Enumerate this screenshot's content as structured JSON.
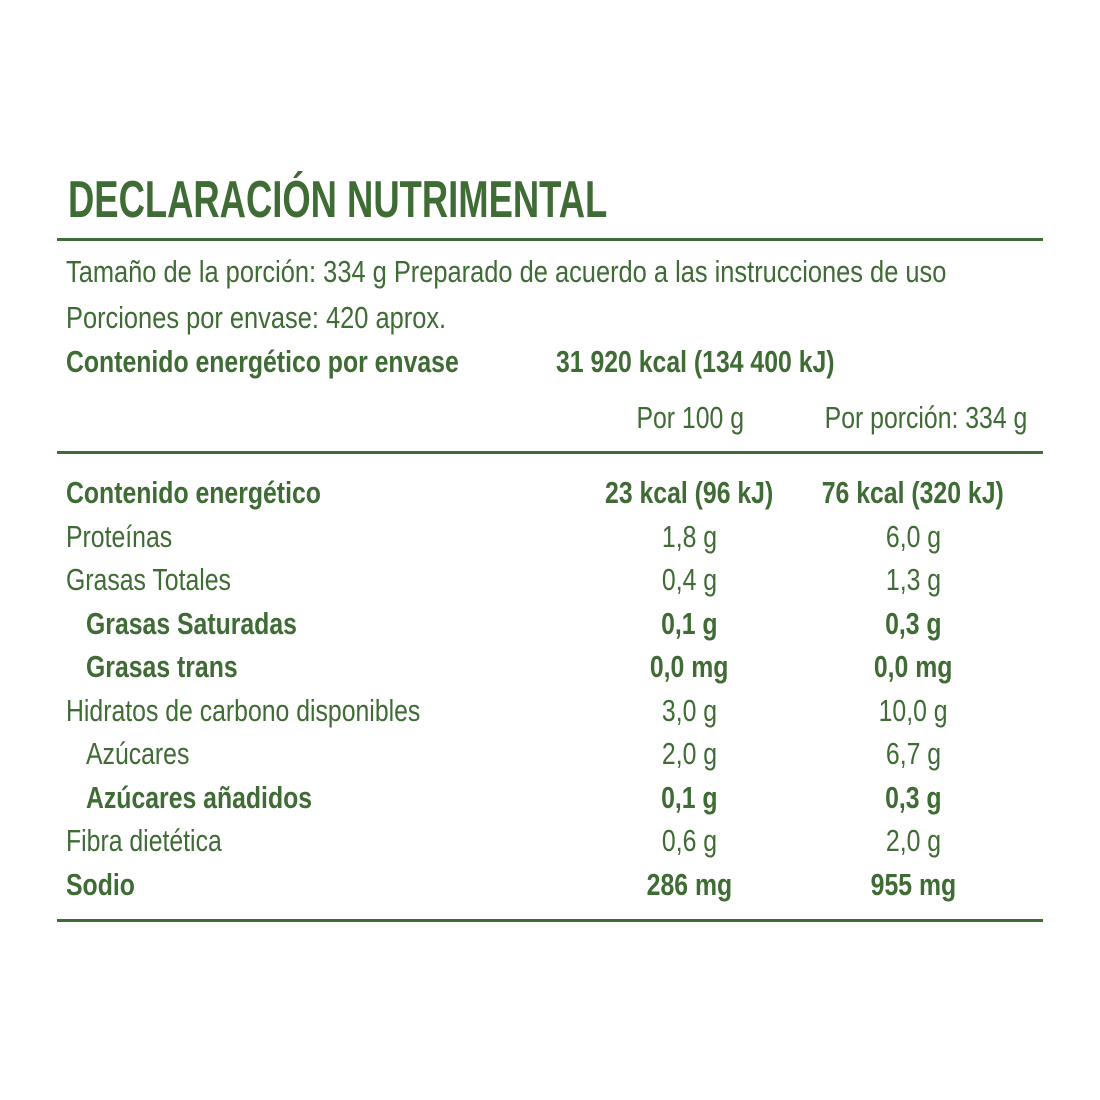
{
  "header": {
    "title": "DECLARACIÓN NUTRIMENTAL"
  },
  "serving": {
    "size_line": "Tamaño de la porción: 334 g Preparado de acuerdo a las instrucciones de uso",
    "servings_line": "Porciones por envase: 420 aprox.",
    "energy_label": "Contenido energético por envase",
    "energy_value": "31 920 kcal (134 400 kJ)"
  },
  "table": {
    "columns": [
      "Por 100 g",
      "Por porción: 334 g"
    ],
    "rows": [
      [
        "Contenido energético",
        "23 kcal (96 kJ)",
        "76 kcal (320 kJ)"
      ],
      [
        "Proteínas",
        "1,8 g",
        "6,0 g"
      ],
      [
        "Grasas Totales",
        "0,4 g",
        "1,3 g"
      ],
      [
        "Grasas Saturadas",
        "0,1 g",
        "0,3 g"
      ],
      [
        "Grasas trans",
        "0,0 mg",
        "0,0 mg"
      ],
      [
        "Hidratos de carbono disponibles",
        "3,0 g",
        "10,0 g"
      ],
      [
        "Azúcares",
        "2,0 g",
        "6,7 g"
      ],
      [
        "Azúcares añadidos",
        "0,1 g",
        "0,3 g"
      ],
      [
        "Fibra dietética",
        "0,6 g",
        "2,0 g"
      ],
      [
        "Sodio",
        "286 mg",
        "955 mg"
      ]
    ]
  }
}
